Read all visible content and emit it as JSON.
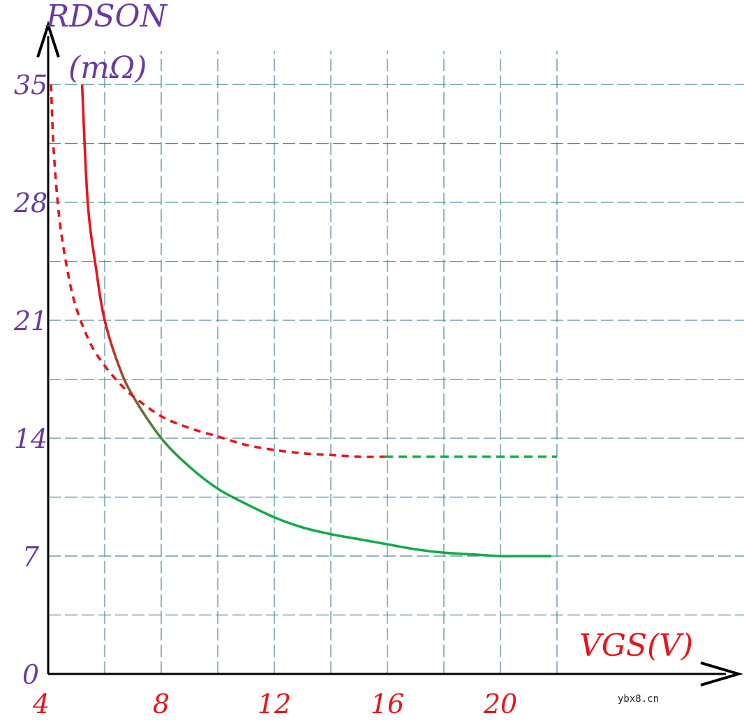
{
  "chart_data": {
    "type": "line",
    "ylabel_line1": "RDSON",
    "ylabel_line2": "(mΩ)",
    "xlabel": "VGS(V)",
    "xlim": [
      4,
      22
    ],
    "ylim": [
      0,
      35
    ],
    "xticks": [
      4,
      8,
      12,
      16,
      20
    ],
    "yticks": [
      0,
      7,
      14,
      21,
      28,
      35
    ],
    "xtick_labels": [
      "4",
      "8",
      "12",
      "16",
      "20"
    ],
    "ytick_labels": [
      "0",
      "7",
      "14",
      "21",
      "28",
      "35"
    ],
    "grid": true,
    "series": [
      {
        "style": "solid",
        "x": [
          5.2,
          5.4,
          5.7,
          6.0,
          6.5,
          7.0,
          8.0,
          9.0,
          10.0,
          11.0,
          12.0,
          13.0,
          14.0,
          15.0,
          16.0,
          17.0,
          18.0,
          19.0,
          20.0,
          21.0,
          21.8
        ],
        "y": [
          35,
          28,
          24,
          21,
          18.3,
          16.5,
          14,
          12.3,
          11,
          10.1,
          9.3,
          8.7,
          8.3,
          8.0,
          7.7,
          7.4,
          7.2,
          7.1,
          7.0,
          7.0,
          7.0
        ]
      },
      {
        "style": "dashed",
        "x": [
          4.1,
          4.2,
          4.4,
          4.7,
          5.0,
          5.5,
          6.0,
          6.5,
          7.0,
          8.0,
          9.0,
          10.0,
          11.0,
          12.0,
          13.0,
          14.0,
          15.0,
          15.9
        ],
        "y": [
          35,
          31,
          27,
          23.8,
          21.7,
          19.6,
          18.3,
          17.3,
          16.5,
          15.3,
          14.6,
          14.1,
          13.6,
          13.3,
          13.1,
          13.0,
          12.9,
          12.9
        ]
      },
      {
        "style": "dashed",
        "x": [
          15.9,
          22.0
        ],
        "y": [
          12.9,
          12.9
        ]
      }
    ],
    "colors": {
      "gradient_start": "#e8141c",
      "gradient_end": "#12ab4b",
      "dashed_red": "#e8141c",
      "dashed_green": "#12ab4b",
      "grid": "#4d8a99",
      "axis": "#000000"
    }
  },
  "watermark": "ybx8.cn"
}
